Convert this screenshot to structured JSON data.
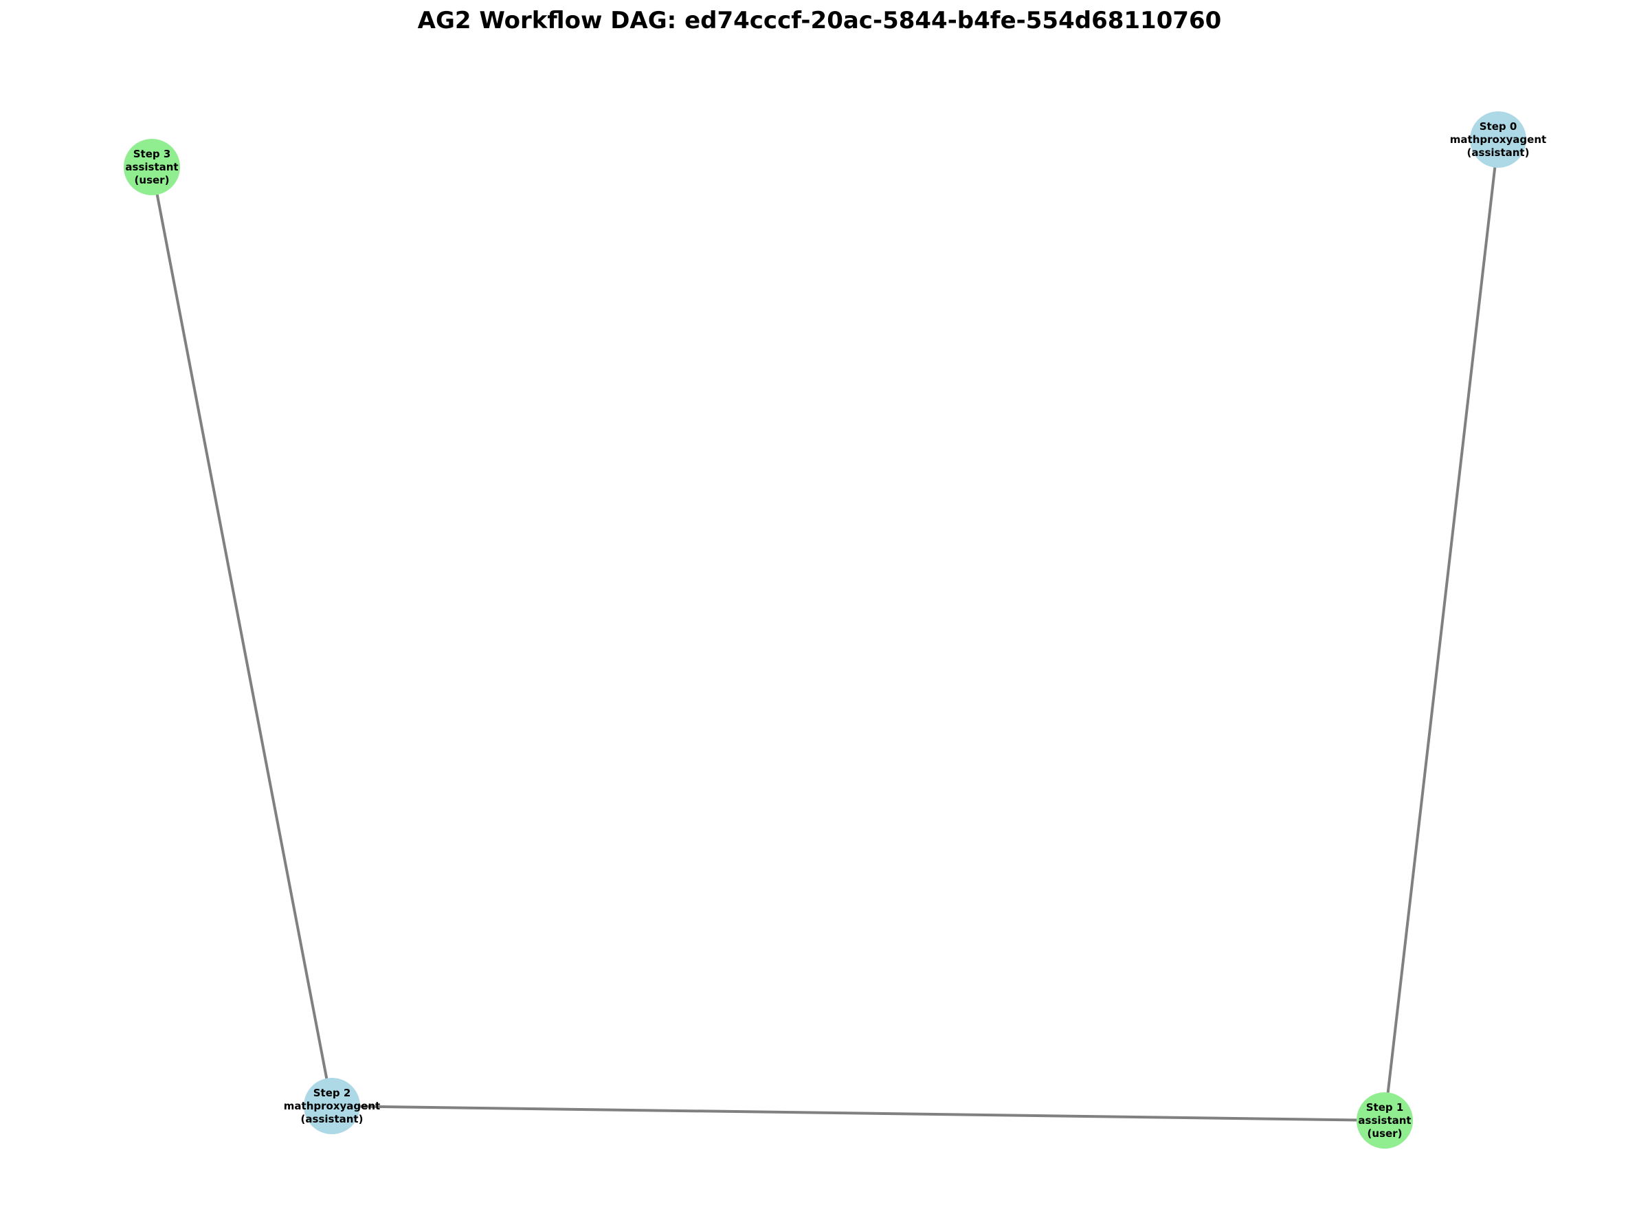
{
  "title": "AG2 Workflow DAG: ed74cccf-20ac-5844-b4fe-554d68110760",
  "colors": {
    "assistant_node": "#add8e6",
    "user_node": "#90ee90",
    "edge": "#808080",
    "text": "#000000"
  },
  "nodes": [
    {
      "id": "step0",
      "lines": [
        "Step 0",
        "mathproxyagent",
        "(assistant)"
      ],
      "role": "assistant"
    },
    {
      "id": "step1",
      "lines": [
        "Step 1",
        "assistant",
        "(user)"
      ],
      "role": "user"
    },
    {
      "id": "step2",
      "lines": [
        "Step 2",
        "mathproxyagent",
        "(assistant)"
      ],
      "role": "assistant"
    },
    {
      "id": "step3",
      "lines": [
        "Step 3",
        "assistant",
        "(user)"
      ],
      "role": "user"
    }
  ],
  "edges": [
    {
      "from": "step0",
      "to": "step1"
    },
    {
      "from": "step1",
      "to": "step2"
    },
    {
      "from": "step2",
      "to": "step3"
    }
  ]
}
